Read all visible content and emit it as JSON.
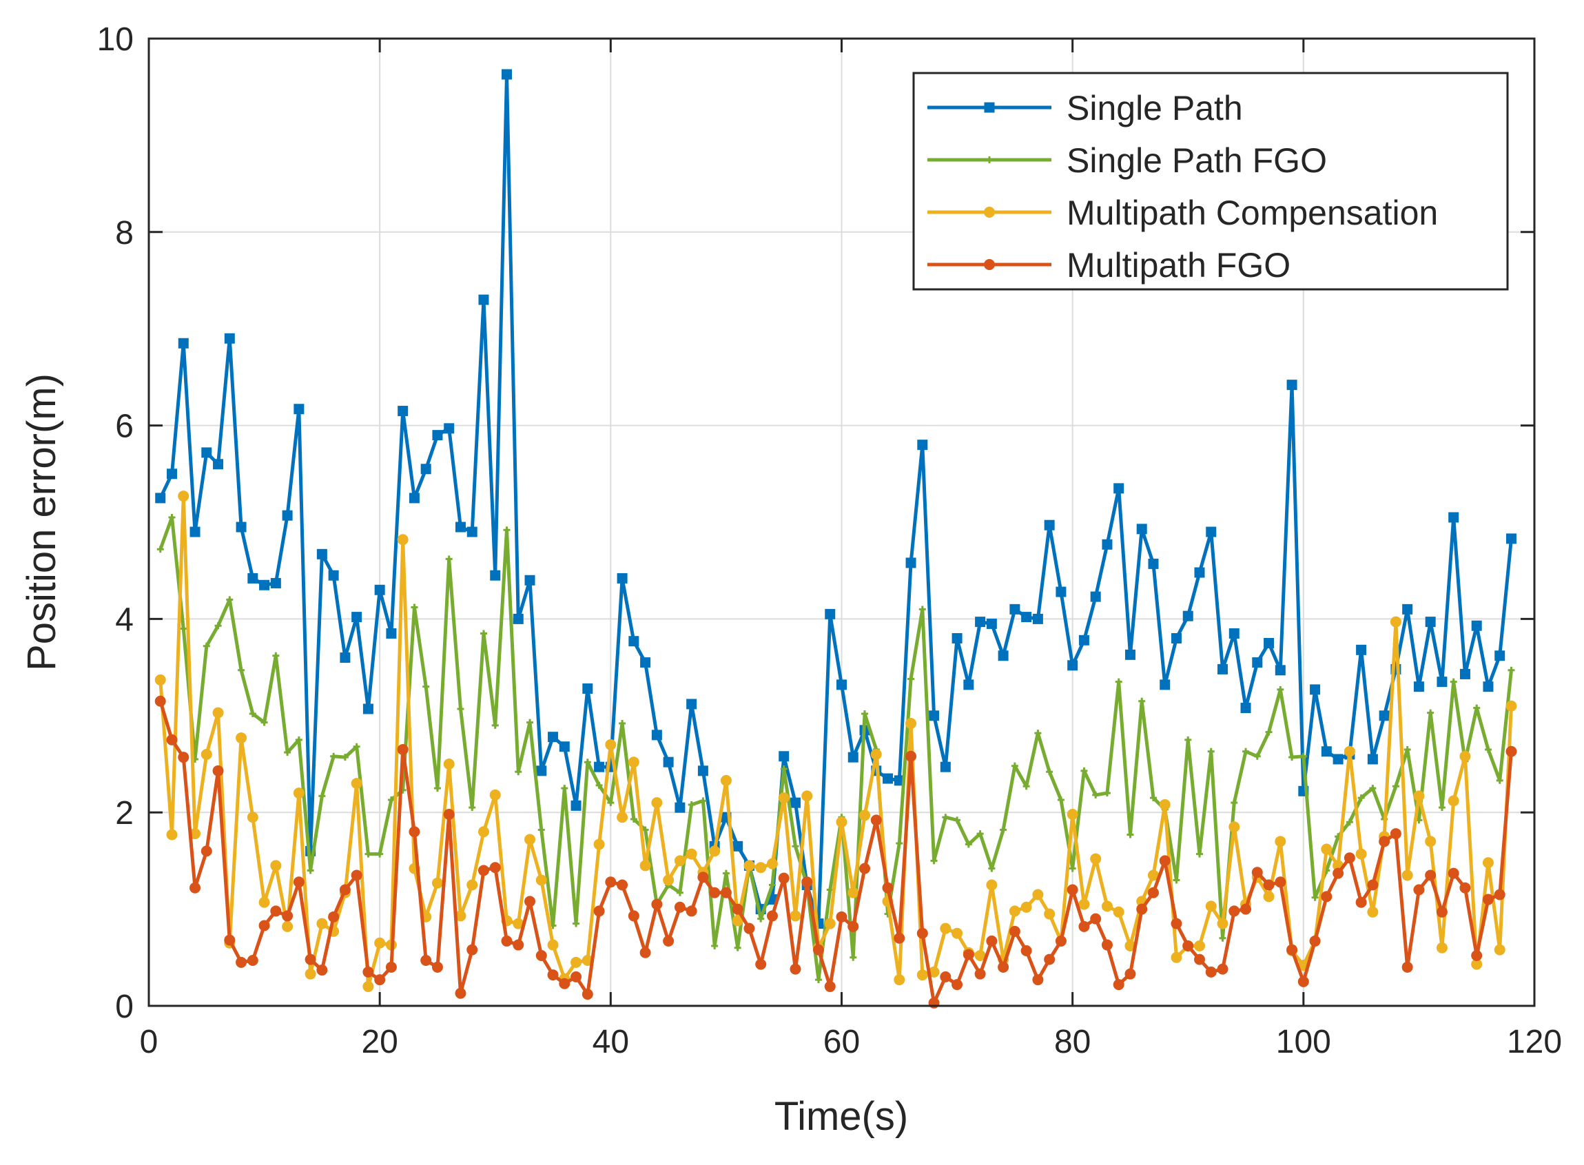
{
  "chart_data": {
    "type": "line",
    "title": "",
    "xlabel": "Time(s)",
    "ylabel": "Position error(m)",
    "xlim": [
      0,
      120
    ],
    "ylim": [
      0,
      10
    ],
    "xticks": [
      "0",
      "20",
      "40",
      "60",
      "80",
      "100",
      "120"
    ],
    "yticks": [
      "0",
      "2",
      "4",
      "6",
      "8",
      "10"
    ],
    "grid": true,
    "legend_position": "top-right",
    "x": [
      1,
      2,
      3,
      4,
      5,
      6,
      7,
      8,
      9,
      10,
      11,
      12,
      13,
      14,
      15,
      16,
      17,
      18,
      19,
      20,
      21,
      22,
      23,
      24,
      25,
      26,
      27,
      28,
      29,
      30,
      31,
      32,
      33,
      34,
      35,
      36,
      37,
      38,
      39,
      40,
      41,
      42,
      43,
      44,
      45,
      46,
      47,
      48,
      49,
      50,
      51,
      52,
      53,
      54,
      55,
      56,
      57,
      58,
      59,
      60,
      61,
      62,
      63,
      64,
      65,
      66,
      67,
      68,
      69,
      70,
      71,
      72,
      73,
      74,
      75,
      76,
      77,
      78,
      79,
      80,
      81,
      82,
      83,
      84,
      85,
      86,
      87,
      88,
      89,
      90,
      91,
      92,
      93,
      94,
      95,
      96,
      97,
      98,
      99,
      100,
      101,
      102,
      103,
      104,
      105,
      106,
      107,
      108,
      109,
      110,
      111,
      112,
      113,
      114,
      115,
      116,
      117,
      118
    ],
    "series": [
      {
        "name": "Single Path",
        "color": "#0072BD",
        "marker": "square",
        "values": [
          5.25,
          5.5,
          6.85,
          4.9,
          5.72,
          5.6,
          6.9,
          4.95,
          4.42,
          4.35,
          4.37,
          5.07,
          6.17,
          1.6,
          4.67,
          4.45,
          3.6,
          4.02,
          3.07,
          4.3,
          3.85,
          6.15,
          5.25,
          5.55,
          5.9,
          5.97,
          4.95,
          4.9,
          7.3,
          4.45,
          9.63,
          4.0,
          4.4,
          2.43,
          2.78,
          2.68,
          2.07,
          3.28,
          2.47,
          2.47,
          4.42,
          3.77,
          3.55,
          2.8,
          2.52,
          2.05,
          3.12,
          2.43,
          1.65,
          1.95,
          1.65,
          1.45,
          1.0,
          1.1,
          2.58,
          2.1,
          1.25,
          0.85,
          4.05,
          3.32,
          2.57,
          2.85,
          2.43,
          2.35,
          2.33,
          4.58,
          5.8,
          3.0,
          2.47,
          3.8,
          3.32,
          3.97,
          3.95,
          3.62,
          4.1,
          4.02,
          4.0,
          4.97,
          4.28,
          3.52,
          3.78,
          4.23,
          4.77,
          5.35,
          3.63,
          4.93,
          4.57,
          3.32,
          3.8,
          4.03,
          4.48,
          4.9,
          3.48,
          3.85,
          3.08,
          3.55,
          3.75,
          3.47,
          6.42,
          2.22,
          3.27,
          2.63,
          2.55,
          2.6,
          3.68,
          2.55,
          3.0,
          3.48,
          4.1,
          3.3,
          3.97,
          3.35,
          5.05,
          3.43,
          3.93,
          3.3,
          3.62,
          4.83
        ]
      },
      {
        "name": "Single Path FGO",
        "color": "#77AC30",
        "marker": "plus",
        "values": [
          4.72,
          5.05,
          3.9,
          2.55,
          3.72,
          3.93,
          4.2,
          3.47,
          3.02,
          2.93,
          3.62,
          2.62,
          2.75,
          1.4,
          2.17,
          2.58,
          2.57,
          2.68,
          1.57,
          1.57,
          2.13,
          2.23,
          4.12,
          3.3,
          2.25,
          4.62,
          3.07,
          2.05,
          3.85,
          2.9,
          4.92,
          2.42,
          2.93,
          1.82,
          0.83,
          2.25,
          0.85,
          2.52,
          2.28,
          2.1,
          2.92,
          1.93,
          1.82,
          1.05,
          1.25,
          1.17,
          2.08,
          2.12,
          0.62,
          1.37,
          0.6,
          1.45,
          0.9,
          1.25,
          2.45,
          1.65,
          1.25,
          0.27,
          1.2,
          1.95,
          0.5,
          3.02,
          2.65,
          0.95,
          1.68,
          3.38,
          4.1,
          1.5,
          1.95,
          1.92,
          1.67,
          1.78,
          1.42,
          1.82,
          2.48,
          2.27,
          2.82,
          2.42,
          2.13,
          1.42,
          2.43,
          2.18,
          2.2,
          3.35,
          1.77,
          3.15,
          2.15,
          2.03,
          1.3,
          2.75,
          1.57,
          2.63,
          0.7,
          2.1,
          2.63,
          2.58,
          2.83,
          3.27,
          2.57,
          2.58,
          1.12,
          1.4,
          1.75,
          1.9,
          2.15,
          2.25,
          1.93,
          2.27,
          2.65,
          1.92,
          3.03,
          2.05,
          3.35,
          2.53,
          3.08,
          2.65,
          2.33,
          3.47
        ]
      },
      {
        "name": "Multipath Compensation",
        "color": "#EDB120",
        "marker": "circle",
        "values": [
          3.37,
          1.77,
          5.27,
          1.78,
          2.6,
          3.03,
          0.65,
          2.77,
          1.95,
          1.07,
          1.45,
          0.82,
          2.2,
          0.33,
          0.85,
          0.77,
          1.17,
          2.3,
          0.2,
          0.65,
          0.63,
          4.82,
          1.42,
          0.92,
          1.27,
          2.5,
          0.93,
          1.25,
          1.8,
          2.18,
          0.88,
          0.85,
          1.72,
          1.3,
          0.63,
          0.28,
          0.45,
          0.47,
          1.67,
          2.7,
          1.95,
          2.52,
          1.45,
          2.1,
          1.3,
          1.5,
          1.57,
          1.38,
          1.6,
          2.33,
          0.88,
          1.45,
          1.43,
          1.47,
          2.15,
          0.93,
          2.17,
          0.6,
          0.85,
          1.9,
          1.17,
          1.97,
          2.6,
          1.08,
          0.27,
          2.92,
          0.32,
          0.35,
          0.8,
          0.75,
          0.55,
          0.52,
          1.25,
          0.48,
          0.98,
          1.02,
          1.15,
          0.95,
          0.67,
          1.98,
          1.05,
          1.52,
          1.03,
          0.97,
          0.62,
          1.08,
          1.35,
          2.08,
          0.5,
          0.62,
          0.62,
          1.03,
          0.85,
          1.85,
          1.05,
          1.33,
          1.13,
          1.7,
          0.57,
          0.42,
          0.67,
          1.62,
          1.45,
          2.63,
          1.57,
          0.97,
          1.75,
          3.97,
          1.35,
          2.17,
          1.7,
          0.6,
          2.12,
          2.58,
          0.43,
          1.48,
          0.58,
          3.1
        ]
      },
      {
        "name": "Multipath FGO",
        "color": "#D95319",
        "marker": "circle",
        "values": [
          3.15,
          2.75,
          2.57,
          1.22,
          1.6,
          2.43,
          0.68,
          0.45,
          0.47,
          0.83,
          0.98,
          0.93,
          1.28,
          0.48,
          0.37,
          0.92,
          1.2,
          1.35,
          0.35,
          0.27,
          0.4,
          2.65,
          1.8,
          0.47,
          0.4,
          1.98,
          0.13,
          0.58,
          1.4,
          1.43,
          0.67,
          0.63,
          1.08,
          0.52,
          0.32,
          0.23,
          0.3,
          0.12,
          0.98,
          1.28,
          1.25,
          0.93,
          0.55,
          1.05,
          0.67,
          1.02,
          0.98,
          1.33,
          1.17,
          1.17,
          1.0,
          0.8,
          0.43,
          0.93,
          1.32,
          0.38,
          1.28,
          0.58,
          0.2,
          0.92,
          0.82,
          1.42,
          1.92,
          1.22,
          0.7,
          2.58,
          0.75,
          0.03,
          0.3,
          0.22,
          0.53,
          0.33,
          0.67,
          0.4,
          0.77,
          0.57,
          0.27,
          0.48,
          0.67,
          1.2,
          0.82,
          0.9,
          0.63,
          0.22,
          0.33,
          1.0,
          1.17,
          1.5,
          0.85,
          0.62,
          0.48,
          0.35,
          0.38,
          0.98,
          1.0,
          1.38,
          1.25,
          1.28,
          0.58,
          0.25,
          0.67,
          1.13,
          1.37,
          1.53,
          1.07,
          1.25,
          1.7,
          1.78,
          0.4,
          1.2,
          1.35,
          0.97,
          1.37,
          1.22,
          0.52,
          1.1,
          1.15,
          2.63
        ]
      }
    ]
  }
}
